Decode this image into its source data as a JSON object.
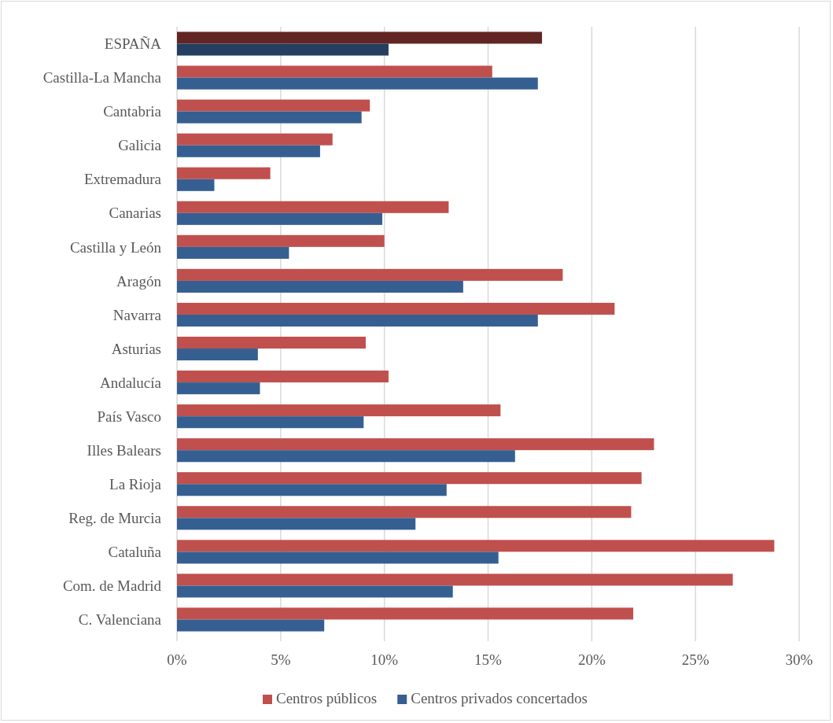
{
  "chart_data": {
    "type": "bar",
    "orientation": "horizontal",
    "categories": [
      "ESPAÑA",
      "Castilla-La Mancha",
      "Cantabria",
      "Galicia",
      "Extremadura",
      "Canarias",
      "Castilla y León",
      "Aragón",
      "Navarra",
      "Asturias",
      "Andalucía",
      "País Vasco",
      "Illes Balears",
      "La Rioja",
      "Reg. de Murcia",
      "Cataluña",
      "Com. de Madrid",
      "C. Valenciana"
    ],
    "series": [
      {
        "name": "Centros públicos",
        "color": "#c0504d",
        "colors": [
          "#632523",
          "#c0504d",
          "#c0504d",
          "#c0504d",
          "#c0504d",
          "#c0504d",
          "#c0504d",
          "#c0504d",
          "#c0504d",
          "#c0504d",
          "#c0504d",
          "#c0504d",
          "#c0504d",
          "#c0504d",
          "#c0504d",
          "#c0504d",
          "#c0504d",
          "#c0504d"
        ],
        "values": [
          17.6,
          15.2,
          9.3,
          7.5,
          4.5,
          13.1,
          10.0,
          18.6,
          21.1,
          9.1,
          10.2,
          15.6,
          23.0,
          22.4,
          21.9,
          28.8,
          26.8,
          22.0
        ]
      },
      {
        "name": "Centros privados concertados",
        "color": "#365f91",
        "colors": [
          "#243f60",
          "#365f91",
          "#365f91",
          "#365f91",
          "#365f91",
          "#365f91",
          "#365f91",
          "#365f91",
          "#365f91",
          "#365f91",
          "#365f91",
          "#365f91",
          "#365f91",
          "#365f91",
          "#365f91",
          "#365f91",
          "#365f91",
          "#365f91"
        ],
        "values": [
          10.2,
          17.4,
          8.9,
          6.9,
          1.8,
          9.9,
          5.4,
          13.8,
          17.4,
          3.9,
          4.0,
          9.0,
          16.3,
          13.0,
          11.5,
          15.5,
          13.3,
          7.1
        ]
      }
    ],
    "xlim": [
      0,
      30
    ],
    "xticks": [
      {
        "value": 0,
        "label": "0%"
      },
      {
        "value": 5,
        "label": "5%"
      },
      {
        "value": 10,
        "label": "10%"
      },
      {
        "value": 15,
        "label": "15%"
      },
      {
        "value": 20,
        "label": "20%"
      },
      {
        "value": 25,
        "label": "25%"
      },
      {
        "value": 30,
        "label": "30%"
      }
    ],
    "grid": "x",
    "legend": "bottom"
  }
}
